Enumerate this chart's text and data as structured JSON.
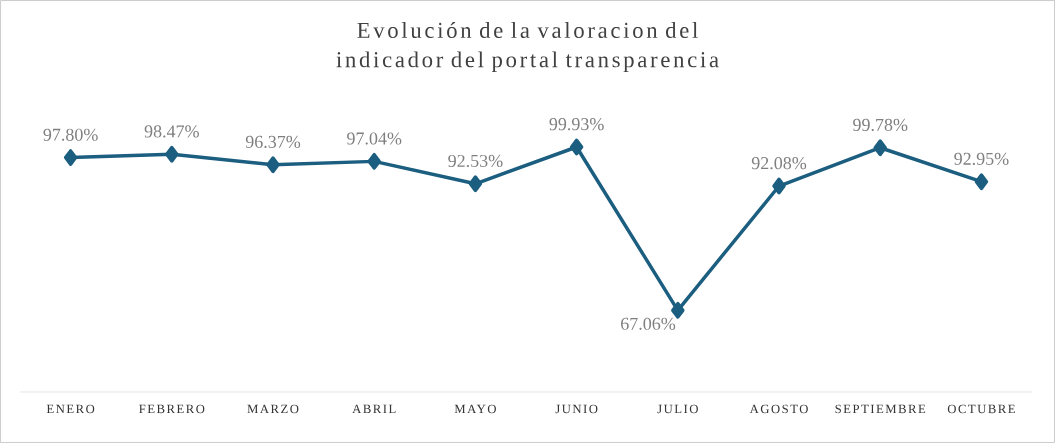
{
  "chart_data": {
    "type": "line",
    "title": "Evolución de la valoracion del indicador del portal transparencia",
    "categories": [
      "ENERO",
      "FEBRERO",
      "MARZO",
      "ABRIL",
      "MAYO",
      "JUNIO",
      "JULIO",
      "AGOSTO",
      "SEPTIEMBRE",
      "OCTUBRE"
    ],
    "values": [
      97.8,
      98.47,
      96.37,
      97.04,
      92.53,
      99.93,
      67.06,
      92.08,
      99.78,
      92.95
    ],
    "value_labels": [
      "97.80%",
      "98.47%",
      "96.37%",
      "97.04%",
      "92.53%",
      "99.93%",
      "67.06%",
      "92.08%",
      "99.78%",
      "92.95%"
    ],
    "color": "#1b5e80",
    "marker": "diamond",
    "line_style": "solid"
  }
}
